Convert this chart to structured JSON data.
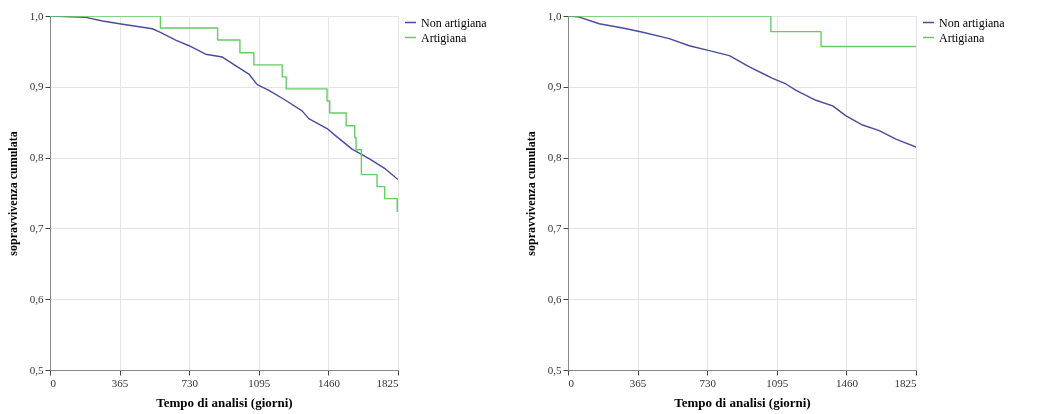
{
  "chart_data": [
    {
      "type": "step",
      "xlabel": "Tempo di analisi (giorni)",
      "ylabel": "sopravvivenza cumulata",
      "xlim": [
        0,
        1825
      ],
      "ylim": [
        0.5,
        1.0
      ],
      "xticks": [
        0,
        365,
        730,
        1095,
        1460,
        1825
      ],
      "yticks": [
        {
          "value": 0.5,
          "label": "0,5"
        },
        {
          "value": 0.6,
          "label": "0,6"
        },
        {
          "value": 0.7,
          "label": "0,7"
        },
        {
          "value": 0.8,
          "label": "0,8"
        },
        {
          "value": 0.9,
          "label": "0,9"
        },
        {
          "value": 1.0,
          "label": "1,0"
        }
      ],
      "grid": true,
      "legend": "top right",
      "series": [
        {
          "name": "Non artigiana",
          "type": "line",
          "color": "#4b4b9e",
          "x": [
            0,
            188,
            276,
            389,
            537,
            579,
            659,
            729,
            816,
            904,
            973,
            1043,
            1087,
            1148,
            1235,
            1322,
            1357,
            1453,
            1497,
            1584,
            1671,
            1759,
            1825
          ],
          "values": [
            1.0,
            0.998,
            0.993,
            0.988,
            0.982,
            0.977,
            0.966,
            0.958,
            0.946,
            0.942,
            0.93,
            0.918,
            0.903,
            0.895,
            0.881,
            0.866,
            0.855,
            0.841,
            0.831,
            0.812,
            0.799,
            0.784,
            0.769
          ]
        },
        {
          "name": "Artigiana",
          "color": "#66cc66",
          "x": [
            0,
            579,
            879,
            996,
            1069,
            1218,
            1239,
            1453,
            1467,
            1553,
            1598,
            1605,
            1633,
            1715,
            1755,
            1821,
            1825
          ],
          "values": [
            1.0,
            0.983,
            0.966,
            0.948,
            0.931,
            0.914,
            0.897,
            0.88,
            0.863,
            0.845,
            0.828,
            0.811,
            0.776,
            0.759,
            0.742,
            0.724,
            0.724
          ]
        }
      ]
    },
    {
      "type": "step",
      "xlabel": "Tempo di analisi (giorni)",
      "ylabel": "sopravvivenza cumulata",
      "xlim": [
        0,
        1825
      ],
      "ylim": [
        0.5,
        1.0
      ],
      "xticks": [
        0,
        365,
        730,
        1095,
        1460,
        1825
      ],
      "yticks": [
        {
          "value": 0.5,
          "label": "0,5"
        },
        {
          "value": 0.6,
          "label": "0,6"
        },
        {
          "value": 0.7,
          "label": "0,7"
        },
        {
          "value": 0.8,
          "label": "0,8"
        },
        {
          "value": 0.9,
          "label": "0,9"
        },
        {
          "value": 1.0,
          "label": "1,0"
        }
      ],
      "grid": true,
      "legend": "top right",
      "series": [
        {
          "name": "Non artigiana",
          "type": "line",
          "color": "#4b4b9e",
          "x": [
            0,
            51,
            164,
            287,
            392,
            531,
            636,
            741,
            846,
            951,
            1073,
            1143,
            1196,
            1300,
            1388,
            1458,
            1545,
            1632,
            1720,
            1825
          ],
          "values": [
            1.0,
            0.999,
            0.989,
            0.983,
            0.977,
            0.968,
            0.958,
            0.951,
            0.944,
            0.928,
            0.912,
            0.904,
            0.895,
            0.881,
            0.873,
            0.859,
            0.846,
            0.838,
            0.826,
            0.815
          ]
        },
        {
          "name": "Artigiana",
          "color": "#66cc66",
          "x": [
            0,
            1064,
            1327,
            1825
          ],
          "values": [
            1.0,
            0.978,
            0.957,
            0.957
          ]
        }
      ]
    }
  ]
}
